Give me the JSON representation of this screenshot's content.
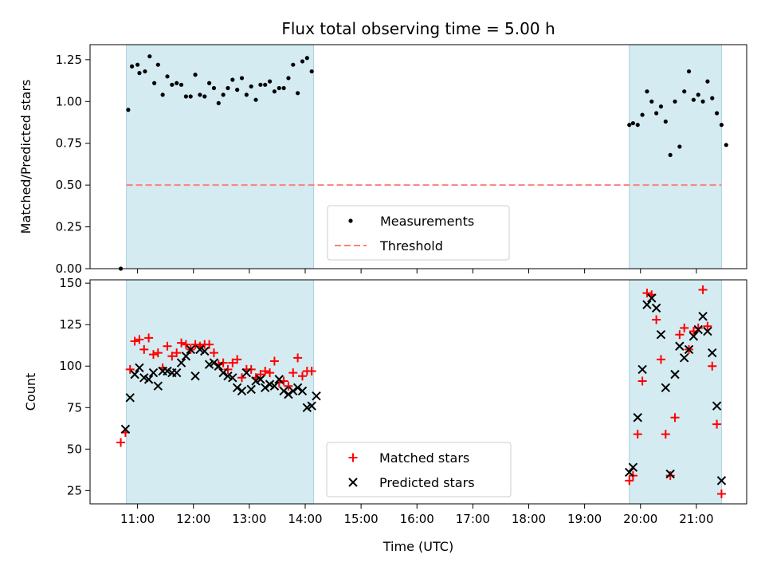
{
  "chart_data": [
    {
      "type": "scatter",
      "title": "Flux total observing time = 5.00 h",
      "xlabel": "",
      "ylabel": "Matched/Predicted stars",
      "ylim": [
        0,
        1.34
      ],
      "yticks": [
        "0.00",
        "0.25",
        "0.50",
        "0.75",
        "1.00",
        "1.25"
      ],
      "shaded_time_ranges": [
        [
          "10:48",
          "14:09"
        ],
        [
          "19:48",
          "21:27"
        ]
      ],
      "threshold": 0.5,
      "threshold_color": "#ff7f7f",
      "shade_color": "#d4ebf1",
      "legend": {
        "position": "lower-center",
        "entries": [
          "Measurements",
          "Threshold"
        ]
      },
      "series": [
        {
          "name": "Measurements",
          "color": "#000000",
          "marker": "dot",
          "points": [
            [
              "10:42",
              0.0
            ],
            [
              "10:50",
              0.95
            ],
            [
              "10:54",
              1.21
            ],
            [
              "11:00",
              1.22
            ],
            [
              "11:02",
              1.17
            ],
            [
              "11:08",
              1.18
            ],
            [
              "11:13",
              1.27
            ],
            [
              "11:18",
              1.11
            ],
            [
              "11:22",
              1.22
            ],
            [
              "11:27",
              1.04
            ],
            [
              "11:32",
              1.15
            ],
            [
              "11:37",
              1.1
            ],
            [
              "11:42",
              1.11
            ],
            [
              "11:47",
              1.1
            ],
            [
              "11:52",
              1.03
            ],
            [
              "11:57",
              1.03
            ],
            [
              "12:02",
              1.16
            ],
            [
              "12:07",
              1.04
            ],
            [
              "12:12",
              1.03
            ],
            [
              "12:17",
              1.11
            ],
            [
              "12:22",
              1.08
            ],
            [
              "12:27",
              0.99
            ],
            [
              "12:32",
              1.04
            ],
            [
              "12:37",
              1.08
            ],
            [
              "12:42",
              1.13
            ],
            [
              "12:47",
              1.07
            ],
            [
              "12:52",
              1.14
            ],
            [
              "12:57",
              1.04
            ],
            [
              "13:02",
              1.09
            ],
            [
              "13:07",
              1.01
            ],
            [
              "13:12",
              1.1
            ],
            [
              "13:17",
              1.1
            ],
            [
              "13:22",
              1.12
            ],
            [
              "13:27",
              1.06
            ],
            [
              "13:32",
              1.08
            ],
            [
              "13:37",
              1.08
            ],
            [
              "13:42",
              1.14
            ],
            [
              "13:47",
              1.22
            ],
            [
              "13:52",
              1.05
            ],
            [
              "13:57",
              1.24
            ],
            [
              "14:02",
              1.26
            ],
            [
              "14:07",
              1.18
            ],
            [
              "19:48",
              0.86
            ],
            [
              "19:52",
              0.87
            ],
            [
              "19:57",
              0.86
            ],
            [
              "20:02",
              0.92
            ],
            [
              "20:07",
              1.06
            ],
            [
              "20:12",
              1.0
            ],
            [
              "20:17",
              0.93
            ],
            [
              "20:22",
              0.97
            ],
            [
              "20:27",
              0.88
            ],
            [
              "20:32",
              0.68
            ],
            [
              "20:37",
              1.0
            ],
            [
              "20:42",
              0.73
            ],
            [
              "20:47",
              1.06
            ],
            [
              "20:52",
              1.18
            ],
            [
              "20:57",
              1.01
            ],
            [
              "21:02",
              1.04
            ],
            [
              "21:07",
              1.0
            ],
            [
              "21:12",
              1.12
            ],
            [
              "21:17",
              1.02
            ],
            [
              "21:22",
              0.93
            ],
            [
              "21:27",
              0.86
            ],
            [
              "21:32",
              0.74
            ]
          ]
        }
      ]
    },
    {
      "type": "scatter",
      "title": "",
      "xlabel": "Time (UTC)",
      "ylabel": "Count",
      "ylim": [
        17,
        152
      ],
      "yticks": [
        "25",
        "50",
        "75",
        "100",
        "125",
        "150"
      ],
      "xticks": [
        "11:00",
        "12:00",
        "13:00",
        "14:00",
        "15:00",
        "16:00",
        "17:00",
        "18:00",
        "19:00",
        "20:00",
        "21:00"
      ],
      "shaded_time_ranges": [
        [
          "10:48",
          "14:09"
        ],
        [
          "19:48",
          "21:27"
        ]
      ],
      "shade_color": "#d4ebf1",
      "legend": {
        "position": "lower-center",
        "entries": [
          "Matched stars",
          "Predicted stars"
        ]
      },
      "series": [
        {
          "name": "Matched stars",
          "color": "#ff0000",
          "marker": "plus",
          "points": [
            [
              "10:42",
              54
            ],
            [
              "10:47",
              60
            ],
            [
              "10:52",
              98
            ],
            [
              "10:57",
              115
            ],
            [
              "11:02",
              116
            ],
            [
              "11:07",
              110
            ],
            [
              "11:12",
              117
            ],
            [
              "11:17",
              107
            ],
            [
              "11:22",
              108
            ],
            [
              "11:27",
              99
            ],
            [
              "11:32",
              112
            ],
            [
              "11:37",
              106
            ],
            [
              "11:42",
              108
            ],
            [
              "11:47",
              114
            ],
            [
              "11:52",
              113
            ],
            [
              "11:57",
              110
            ],
            [
              "12:02",
              113
            ],
            [
              "12:07",
              112
            ],
            [
              "12:12",
              113
            ],
            [
              "12:17",
              113
            ],
            [
              "12:22",
              108
            ],
            [
              "12:27",
              101
            ],
            [
              "12:32",
              102
            ],
            [
              "12:37",
              98
            ],
            [
              "12:42",
              102
            ],
            [
              "12:47",
              104
            ],
            [
              "12:52",
              93
            ],
            [
              "12:57",
              98
            ],
            [
              "13:02",
              98
            ],
            [
              "13:07",
              93
            ],
            [
              "13:12",
              95
            ],
            [
              "13:17",
              97
            ],
            [
              "13:22",
              96
            ],
            [
              "13:27",
              103
            ],
            [
              "13:32",
              90
            ],
            [
              "13:37",
              91
            ],
            [
              "13:42",
              88
            ],
            [
              "13:47",
              96
            ],
            [
              "13:52",
              105
            ],
            [
              "13:57",
              94
            ],
            [
              "14:02",
              97
            ],
            [
              "14:07",
              97
            ],
            [
              "19:48",
              31
            ],
            [
              "19:52",
              34
            ],
            [
              "19:57",
              59
            ],
            [
              "20:02",
              91
            ],
            [
              "20:07",
              144
            ],
            [
              "20:12",
              143
            ],
            [
              "20:17",
              128
            ],
            [
              "20:22",
              104
            ],
            [
              "20:27",
              59
            ],
            [
              "20:32",
              34
            ],
            [
              "20:37",
              69
            ],
            [
              "20:42",
              119
            ],
            [
              "20:47",
              123
            ],
            [
              "20:52",
              110
            ],
            [
              "20:57",
              121
            ],
            [
              "21:02",
              123
            ],
            [
              "21:07",
              146
            ],
            [
              "21:12",
              124
            ],
            [
              "21:17",
              100
            ],
            [
              "21:22",
              65
            ],
            [
              "21:27",
              23
            ]
          ]
        },
        {
          "name": "Predicted stars",
          "color": "#000000",
          "marker": "x",
          "points": [
            [
              "10:47",
              62
            ],
            [
              "10:52",
              81
            ],
            [
              "10:57",
              95
            ],
            [
              "11:02",
              99
            ],
            [
              "11:07",
              93
            ],
            [
              "11:12",
              92
            ],
            [
              "11:17",
              96
            ],
            [
              "11:22",
              88
            ],
            [
              "11:27",
              97
            ],
            [
              "11:32",
              97
            ],
            [
              "11:37",
              96
            ],
            [
              "11:42",
              96
            ],
            [
              "11:47",
              102
            ],
            [
              "11:52",
              106
            ],
            [
              "11:57",
              110
            ],
            [
              "12:02",
              94
            ],
            [
              "12:07",
              110
            ],
            [
              "12:12",
              109
            ],
            [
              "12:17",
              101
            ],
            [
              "12:22",
              102
            ],
            [
              "12:27",
              100
            ],
            [
              "12:32",
              96
            ],
            [
              "12:37",
              94
            ],
            [
              "12:42",
              93
            ],
            [
              "12:47",
              87
            ],
            [
              "12:52",
              85
            ],
            [
              "12:57",
              96
            ],
            [
              "13:02",
              86
            ],
            [
              "13:07",
              91
            ],
            [
              "13:12",
              92
            ],
            [
              "13:17",
              87
            ],
            [
              "13:22",
              89
            ],
            [
              "13:27",
              88
            ],
            [
              "13:32",
              92
            ],
            [
              "13:37",
              85
            ],
            [
              "13:42",
              83
            ],
            [
              "13:47",
              85
            ],
            [
              "13:52",
              87
            ],
            [
              "13:57",
              85
            ],
            [
              "14:02",
              75
            ],
            [
              "14:07",
              76
            ],
            [
              "14:12",
              82
            ],
            [
              "19:48",
              36
            ],
            [
              "19:52",
              39
            ],
            [
              "19:57",
              69
            ],
            [
              "20:02",
              98
            ],
            [
              "20:07",
              137
            ],
            [
              "20:12",
              141
            ],
            [
              "20:17",
              135
            ],
            [
              "20:22",
              119
            ],
            [
              "20:27",
              87
            ],
            [
              "20:32",
              35
            ],
            [
              "20:37",
              95
            ],
            [
              "20:42",
              112
            ],
            [
              "20:47",
              105
            ],
            [
              "20:52",
              110
            ],
            [
              "20:57",
              118
            ],
            [
              "21:02",
              122
            ],
            [
              "21:07",
              130
            ],
            [
              "21:12",
              121
            ],
            [
              "21:17",
              108
            ],
            [
              "21:22",
              76
            ],
            [
              "21:27",
              31
            ]
          ]
        }
      ]
    }
  ]
}
